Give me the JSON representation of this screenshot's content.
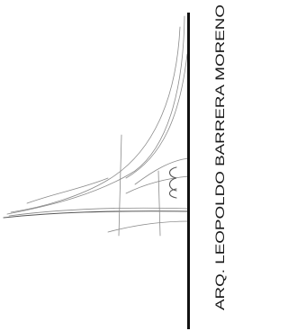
{
  "logo": {
    "text": "ARQ. LEOPOLDO BARRERA MORENO"
  }
}
